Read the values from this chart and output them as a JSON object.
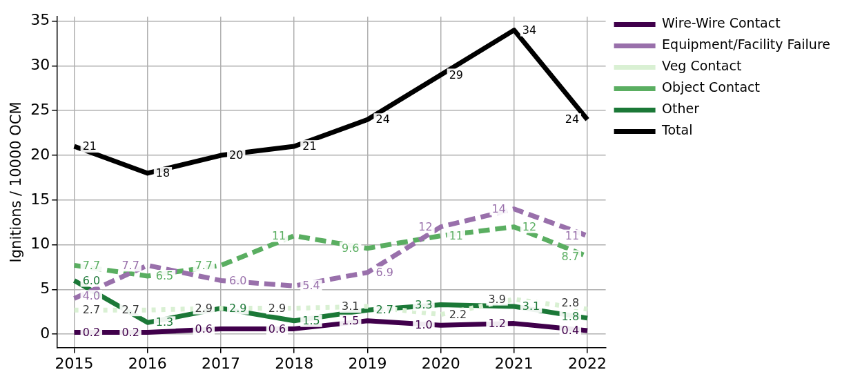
{
  "chart_data": {
    "type": "line",
    "ylabel": "Ignitions / 10000 OCM",
    "x": [
      2015,
      2016,
      2017,
      2018,
      2019,
      2020,
      2021,
      2022
    ],
    "xlim": [
      2014.77,
      2022.25
    ],
    "xticks": [
      2015,
      2016,
      2017,
      2018,
      2019,
      2020,
      2021,
      2022
    ],
    "ylim": [
      -1.5,
      35.5
    ],
    "yticks": [
      0,
      5,
      10,
      15,
      20,
      25,
      30,
      35
    ],
    "grid": true,
    "legend": "top right",
    "marker": "none",
    "series": [
      {
        "name": "Wire-Wire Contact",
        "color": "#40004b",
        "line_style": "solid",
        "values": [
          0.2,
          0.2,
          0.6,
          0.6,
          1.5,
          1.0,
          1.2,
          0.4
        ],
        "value_labels": [
          "0.2",
          "0.2",
          "0.6",
          "0.6",
          "1.5",
          "1.0",
          "1.2",
          "0.4"
        ]
      },
      {
        "name": "Equipment/Facility Failure",
        "color": "#9970ab",
        "line_style": "dashed",
        "values": [
          4.0,
          7.7,
          6.0,
          5.4,
          6.9,
          12,
          14,
          11
        ],
        "value_labels": [
          "4.0",
          "7.7",
          "6.0",
          "5.4",
          "6.9",
          "12",
          "14",
          "11"
        ]
      },
      {
        "name": "Veg Contact",
        "color": "#d9f0d3",
        "line_style": "dotted",
        "values": [
          2.7,
          2.7,
          2.9,
          2.9,
          3.1,
          2.2,
          3.9,
          2.8
        ],
        "value_labels": [
          "2.7",
          "2.7",
          "2.9",
          "2.9",
          "3.1",
          "2.2",
          "3.9",
          "2.8"
        ]
      },
      {
        "name": "Object Contact",
        "color": "#5aae61",
        "line_style": "dashed",
        "values": [
          7.7,
          6.5,
          7.7,
          11,
          9.6,
          11,
          12,
          8.7
        ],
        "value_labels": [
          "7.7",
          "6.5",
          "7.7",
          "11",
          "9.6",
          "11",
          "12",
          "8.7"
        ]
      },
      {
        "name": "Other",
        "color": "#1b7837",
        "line_style": "solid",
        "values": [
          6.0,
          1.3,
          2.9,
          1.5,
          2.7,
          3.3,
          3.1,
          1.8
        ],
        "value_labels": [
          "6.0",
          "1.3",
          "2.9",
          "1.5",
          "2.7",
          "3.3",
          "3.1",
          "1.8"
        ]
      },
      {
        "name": "Total",
        "color": "#000000",
        "line_style": "solid",
        "values": [
          21,
          18,
          20,
          21,
          24,
          29,
          34,
          24
        ],
        "value_labels": [
          "21",
          "18",
          "20",
          "21",
          "24",
          "29",
          "34",
          "24"
        ]
      }
    ]
  }
}
